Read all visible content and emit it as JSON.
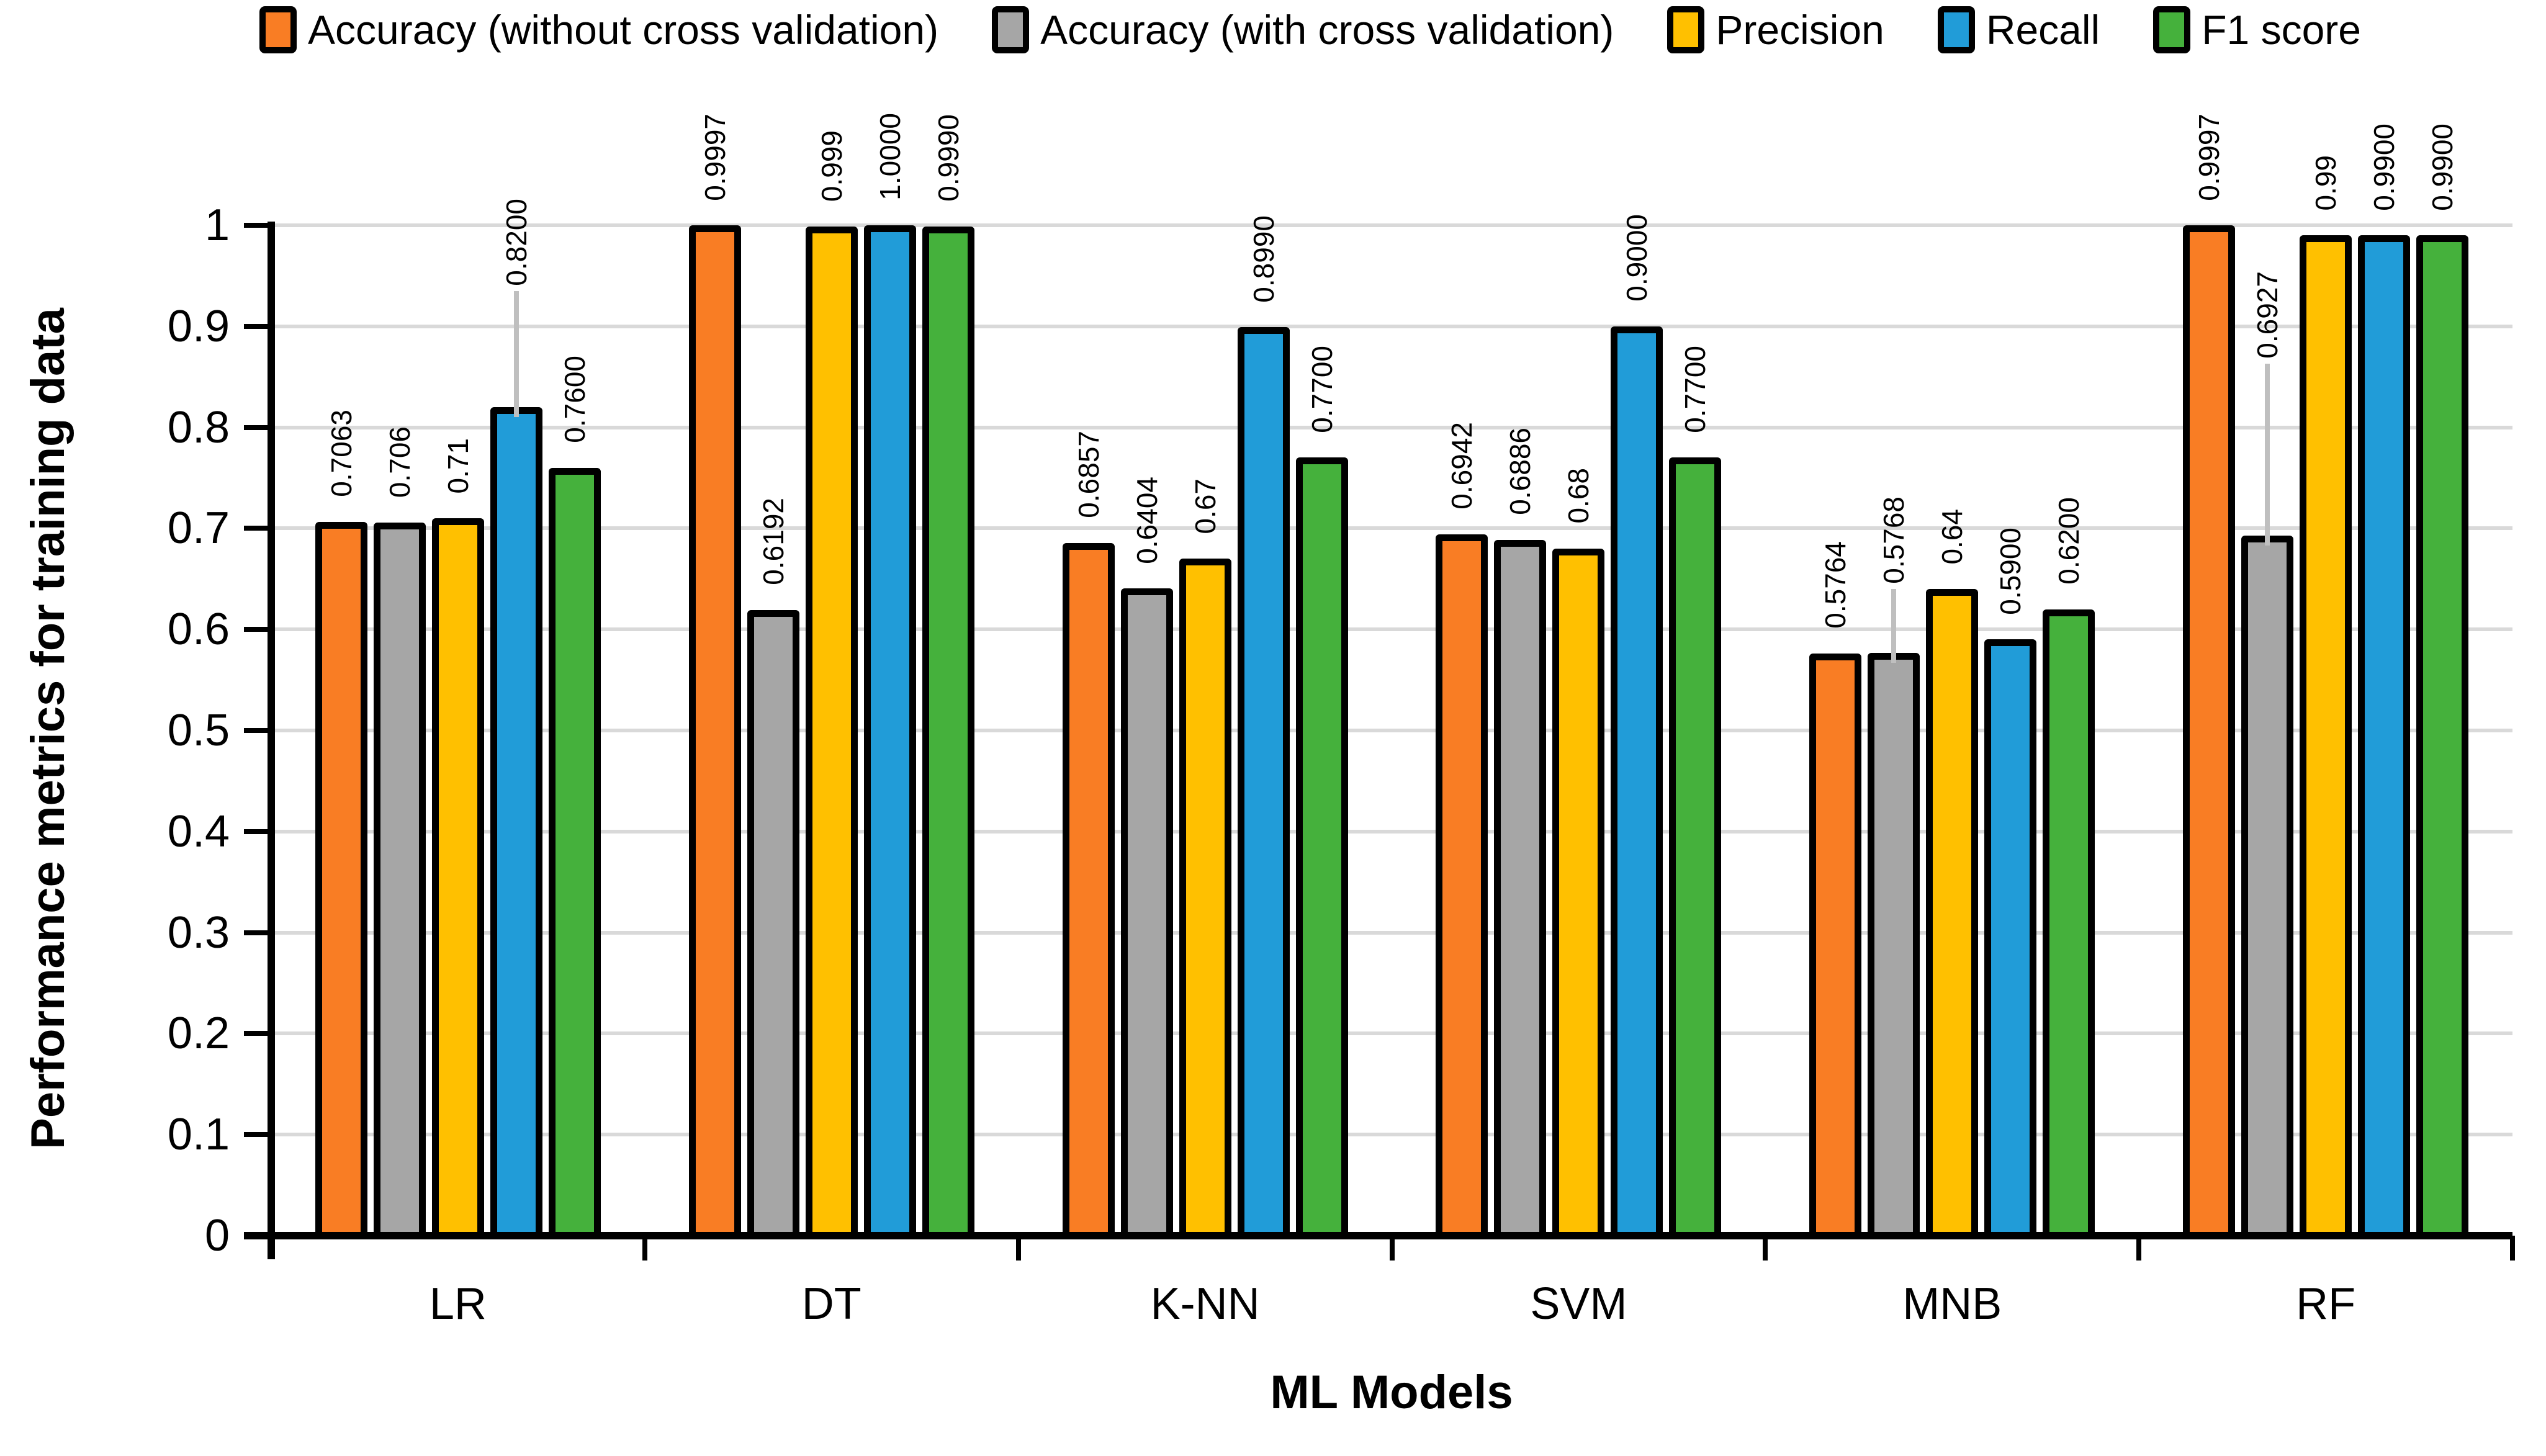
{
  "chart_data": {
    "type": "bar",
    "title": "",
    "xlabel": "ML Models",
    "ylabel": "Performance metrics for training data",
    "ylim": [
      0,
      1
    ],
    "ytick_step": 0.1,
    "ytick_labels": [
      "1",
      "0.9",
      "0.8",
      "0.7",
      "0.6",
      "0.5",
      "0.4",
      "0.3",
      "0.2",
      "0.1",
      "0"
    ],
    "grid": "horizontal",
    "legend_position": "top",
    "categories": [
      "LR",
      "DT",
      "K-NN",
      "SVM",
      "MNB",
      "RF"
    ],
    "series": [
      {
        "name": "Accuracy (without cross validation)",
        "color": "#F97D24",
        "values": [
          0.7063,
          0.9997,
          0.6857,
          0.6942,
          0.5764,
          0.9997
        ],
        "labels": [
          "0.7063",
          "0.9997",
          "0.6857",
          "0.6942",
          "0.5764",
          "0.9997"
        ]
      },
      {
        "name": "Accuracy (with cross validation)",
        "color": "#A6A6A6",
        "values": [
          0.706,
          0.6192,
          0.6404,
          0.6886,
          0.5768,
          0.6927
        ],
        "labels": [
          "0.706",
          "0.6192",
          "0.6404",
          "0.6886",
          "0.5768",
          "0.6927"
        ]
      },
      {
        "name": "Precision",
        "color": "#FFC000",
        "values": [
          0.71,
          0.999,
          0.67,
          0.68,
          0.64,
          0.99
        ],
        "labels": [
          "0.71",
          "0.999",
          "0.67",
          "0.68",
          "0.64",
          "0.99"
        ]
      },
      {
        "name": "Recall",
        "color": "#219CD8",
        "values": [
          0.82,
          1.0,
          0.899,
          0.9,
          0.59,
          0.99
        ],
        "labels": [
          "0.8200",
          "1.0000",
          "0.8990",
          "0.9000",
          "0.5900",
          "0.9900"
        ]
      },
      {
        "name": "F1 score",
        "color": "#45B13C",
        "values": [
          0.76,
          0.999,
          0.77,
          0.77,
          0.62,
          0.99
        ],
        "labels": [
          "0.7600",
          "0.9990",
          "0.7700",
          "0.7700",
          "0.6200",
          "0.9900"
        ]
      }
    ],
    "leader_lines": [
      {
        "series": 3,
        "category": 0,
        "label_bottom": 0.94
      },
      {
        "series": 1,
        "category": 4,
        "label_bottom": 0.645
      },
      {
        "series": 1,
        "category": 5,
        "label_bottom": 0.868
      }
    ],
    "colors": {
      "grid": "#D9D9D9",
      "axis": "#000000",
      "bar_border": "#000000",
      "leader_line": "#BFBFBF",
      "text": "#000000"
    }
  }
}
